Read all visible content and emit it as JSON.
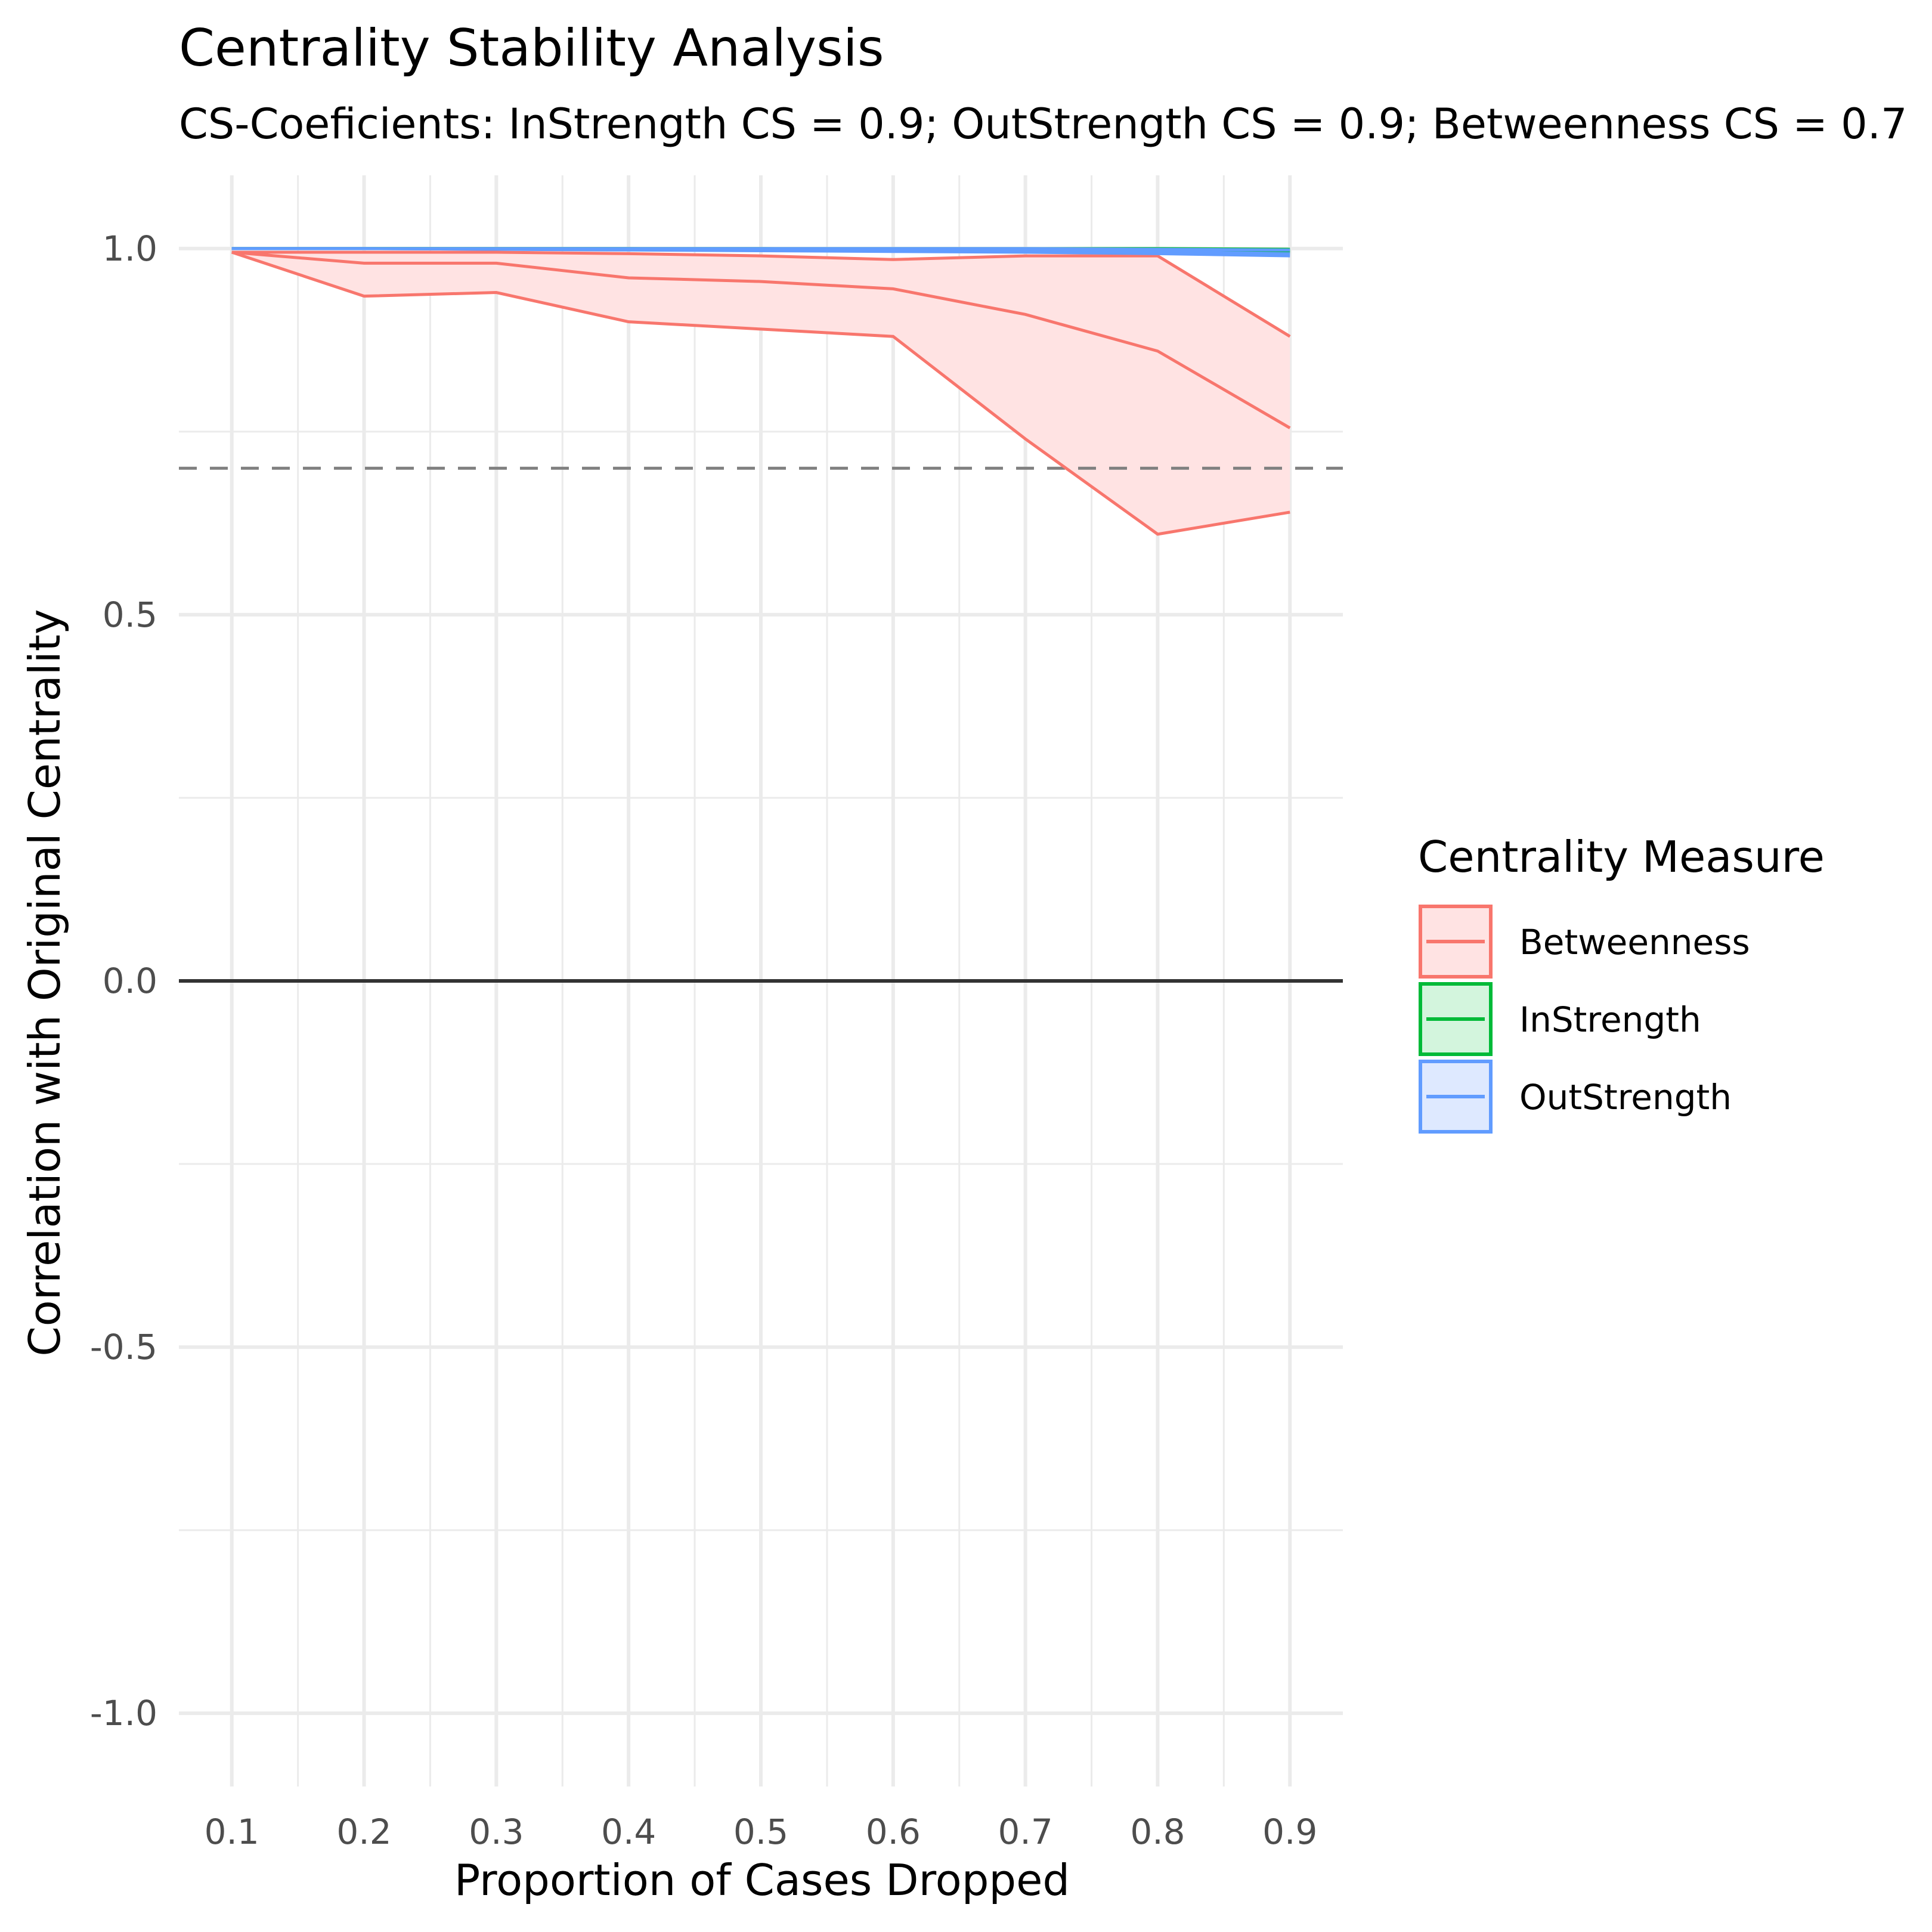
{
  "chart_data": {
    "type": "line",
    "title": "Centrality Stability Analysis",
    "subtitle": "CS-Coeficients: InStrength CS = 0.9; OutStrength CS = 0.9; Betweenness CS = 0.7",
    "xlabel": "Proportion of Cases Dropped",
    "ylabel": "Correlation with Original Centrality",
    "x": [
      0.1,
      0.2,
      0.3,
      0.4,
      0.5,
      0.6,
      0.7,
      0.8,
      0.9
    ],
    "x_tick_labels": [
      "0.1",
      "0.2",
      "0.3",
      "0.4",
      "0.5",
      "0.6",
      "0.7",
      "0.8",
      "0.9"
    ],
    "xlim": [
      0.06,
      0.94
    ],
    "ylim": [
      -1.1,
      1.1
    ],
    "y_ticks": [
      1.0,
      0.5,
      0.0,
      -0.5,
      -1.0
    ],
    "y_tick_labels": [
      "1.0",
      "0.5",
      "0.0",
      "-0.5",
      "-1.0"
    ],
    "grid": true,
    "reference_lines": [
      {
        "y": 0.7,
        "style": "dashed",
        "color": "#808080"
      },
      {
        "y": 0.0,
        "style": "solid",
        "color": "#333333"
      }
    ],
    "legend": {
      "title": "Centrality Measure",
      "position": "right"
    },
    "series": [
      {
        "name": "Betweenness",
        "color": "#F8766D",
        "fill": "#FFE3E3",
        "upper": [
          0.995,
          0.98,
          0.98,
          0.96,
          0.955,
          0.94,
          0.91,
          0.86,
          0.88
        ],
        "lower": [
          0.995,
          0.935,
          0.94,
          0.9,
          0.89,
          0.88,
          0.74,
          0.61,
          0.64
        ],
        "mean": [
          0.995,
          0.98,
          0.98,
          0.96,
          0.955,
          0.945,
          0.91,
          0.86,
          0.755
        ],
        "upper_outer": [
          0.995,
          0.995,
          0.995,
          0.993,
          0.99,
          0.985,
          0.99,
          0.99,
          0.88
        ]
      },
      {
        "name": "InStrength",
        "color": "#00BA38",
        "fill": "#D3F5DD",
        "upper": [
          1.0,
          1.0,
          1.0,
          1.0,
          1.0,
          1.0,
          1.0,
          1.0,
          0.999
        ],
        "lower": [
          1.0,
          1.0,
          1.0,
          1.0,
          0.999,
          0.999,
          0.998,
          0.997,
          0.995
        ],
        "mean": [
          1.0,
          1.0,
          1.0,
          1.0,
          1.0,
          0.999,
          0.999,
          0.999,
          0.997
        ]
      },
      {
        "name": "OutStrength",
        "color": "#619CFF",
        "fill": "#DEE9FF",
        "upper": [
          1.0,
          1.0,
          1.0,
          1.0,
          1.0,
          1.0,
          1.0,
          0.999,
          0.998
        ],
        "lower": [
          1.0,
          1.0,
          0.999,
          0.998,
          0.997,
          0.996,
          0.995,
          0.993,
          0.99
        ],
        "mean": [
          1.0,
          1.0,
          0.999,
          0.999,
          0.998,
          0.998,
          0.997,
          0.996,
          0.993
        ]
      }
    ]
  }
}
